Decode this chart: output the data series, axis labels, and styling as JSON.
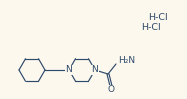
{
  "background_color": "#fdf8ee",
  "line_color": "#2d4a6b",
  "text_color": "#2d4a6b",
  "hcl1_text": "H-Cl",
  "hcl2_text": "H-Cl",
  "nh2_text": "H₂N",
  "o_text": "O",
  "n_text": "N",
  "figsize": [
    1.87,
    0.99
  ],
  "dpi": 100
}
